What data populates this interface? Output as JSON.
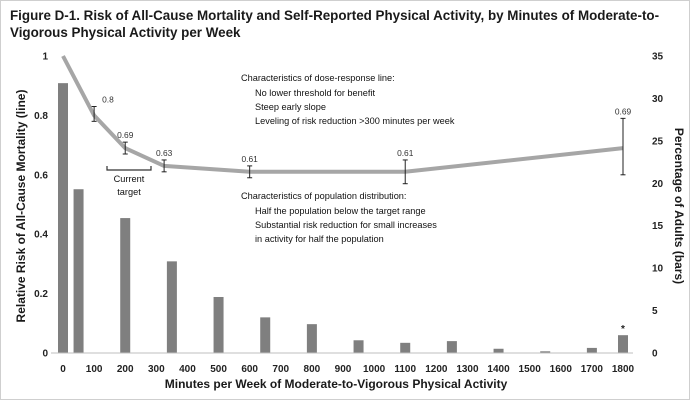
{
  "figure_title": "Figure D-1. Risk of All-Cause Mortality and Self-Reported Physical Activity, by Minutes of Moderate-to-Vigorous Physical Activity per Week",
  "colors": {
    "bars": "#7f7f7f",
    "line": "#a6a6a6",
    "error_bar": "#222222",
    "text": "#1a1a1a"
  },
  "chart_data": {
    "type": "bar+line",
    "xlabel": "Minutes per Week of Moderate-to-Vigorous Physical Activity",
    "ylabel_left": "Relative Risk of All-Cause Mortality (line)",
    "ylabel_right": "Percentage of Adults (bars)",
    "x_ticks": [
      0,
      100,
      200,
      300,
      400,
      500,
      600,
      700,
      800,
      900,
      1000,
      1100,
      1200,
      1300,
      1400,
      1500,
      1600,
      1700,
      1800
    ],
    "xlim": [
      0,
      1800
    ],
    "ylim_left": [
      0,
      1
    ],
    "yticks_left": [
      0,
      0.2,
      0.4,
      0.6,
      0.8,
      1
    ],
    "ylim_right": [
      0,
      35
    ],
    "yticks_right": [
      0,
      5,
      10,
      15,
      20,
      25,
      30,
      35
    ],
    "grid": false,
    "bars": {
      "x": [
        0,
        50,
        200,
        350,
        500,
        650,
        800,
        950,
        1100,
        1250,
        1400,
        1550,
        1700,
        1800
      ],
      "values": [
        31.8,
        19.3,
        15.9,
        10.8,
        6.6,
        4.2,
        3.4,
        1.5,
        1.2,
        1.4,
        0.5,
        0.2,
        0.6,
        2.1
      ],
      "annotations": [
        {
          "x": 1800,
          "text": "*"
        }
      ]
    },
    "line": {
      "points": [
        {
          "x": 0,
          "y": 1.0
        },
        {
          "x": 100,
          "y": 0.8,
          "label": "0.8",
          "err": [
            0.78,
            0.83
          ]
        },
        {
          "x": 200,
          "y": 0.69,
          "label": "0.69",
          "err": [
            0.67,
            0.71
          ]
        },
        {
          "x": 325,
          "y": 0.63,
          "label": "0.63",
          "err": [
            0.61,
            0.65
          ]
        },
        {
          "x": 600,
          "y": 0.61,
          "label": "0.61",
          "err": [
            0.59,
            0.63
          ]
        },
        {
          "x": 1100,
          "y": 0.61,
          "label": "0.61",
          "err": [
            0.57,
            0.65
          ]
        },
        {
          "x": 1800,
          "y": 0.69,
          "label": "0.69",
          "err": [
            0.6,
            0.79
          ]
        }
      ]
    },
    "annotations": {
      "current_target": {
        "text": [
          "Current",
          "target"
        ],
        "x_range": [
          150,
          300
        ]
      },
      "dose_response": {
        "heading": "Characteristics of dose-response line:",
        "items": [
          "No lower threshold for benefit",
          "Steep early slope",
          "Leveling of risk reduction >300 minutes per week"
        ]
      },
      "population": {
        "heading": "Characteristics of population distribution:",
        "items": [
          "Half the population below the target range",
          "Substantial risk reduction for small increases",
          "in activity for half the population"
        ]
      }
    }
  }
}
